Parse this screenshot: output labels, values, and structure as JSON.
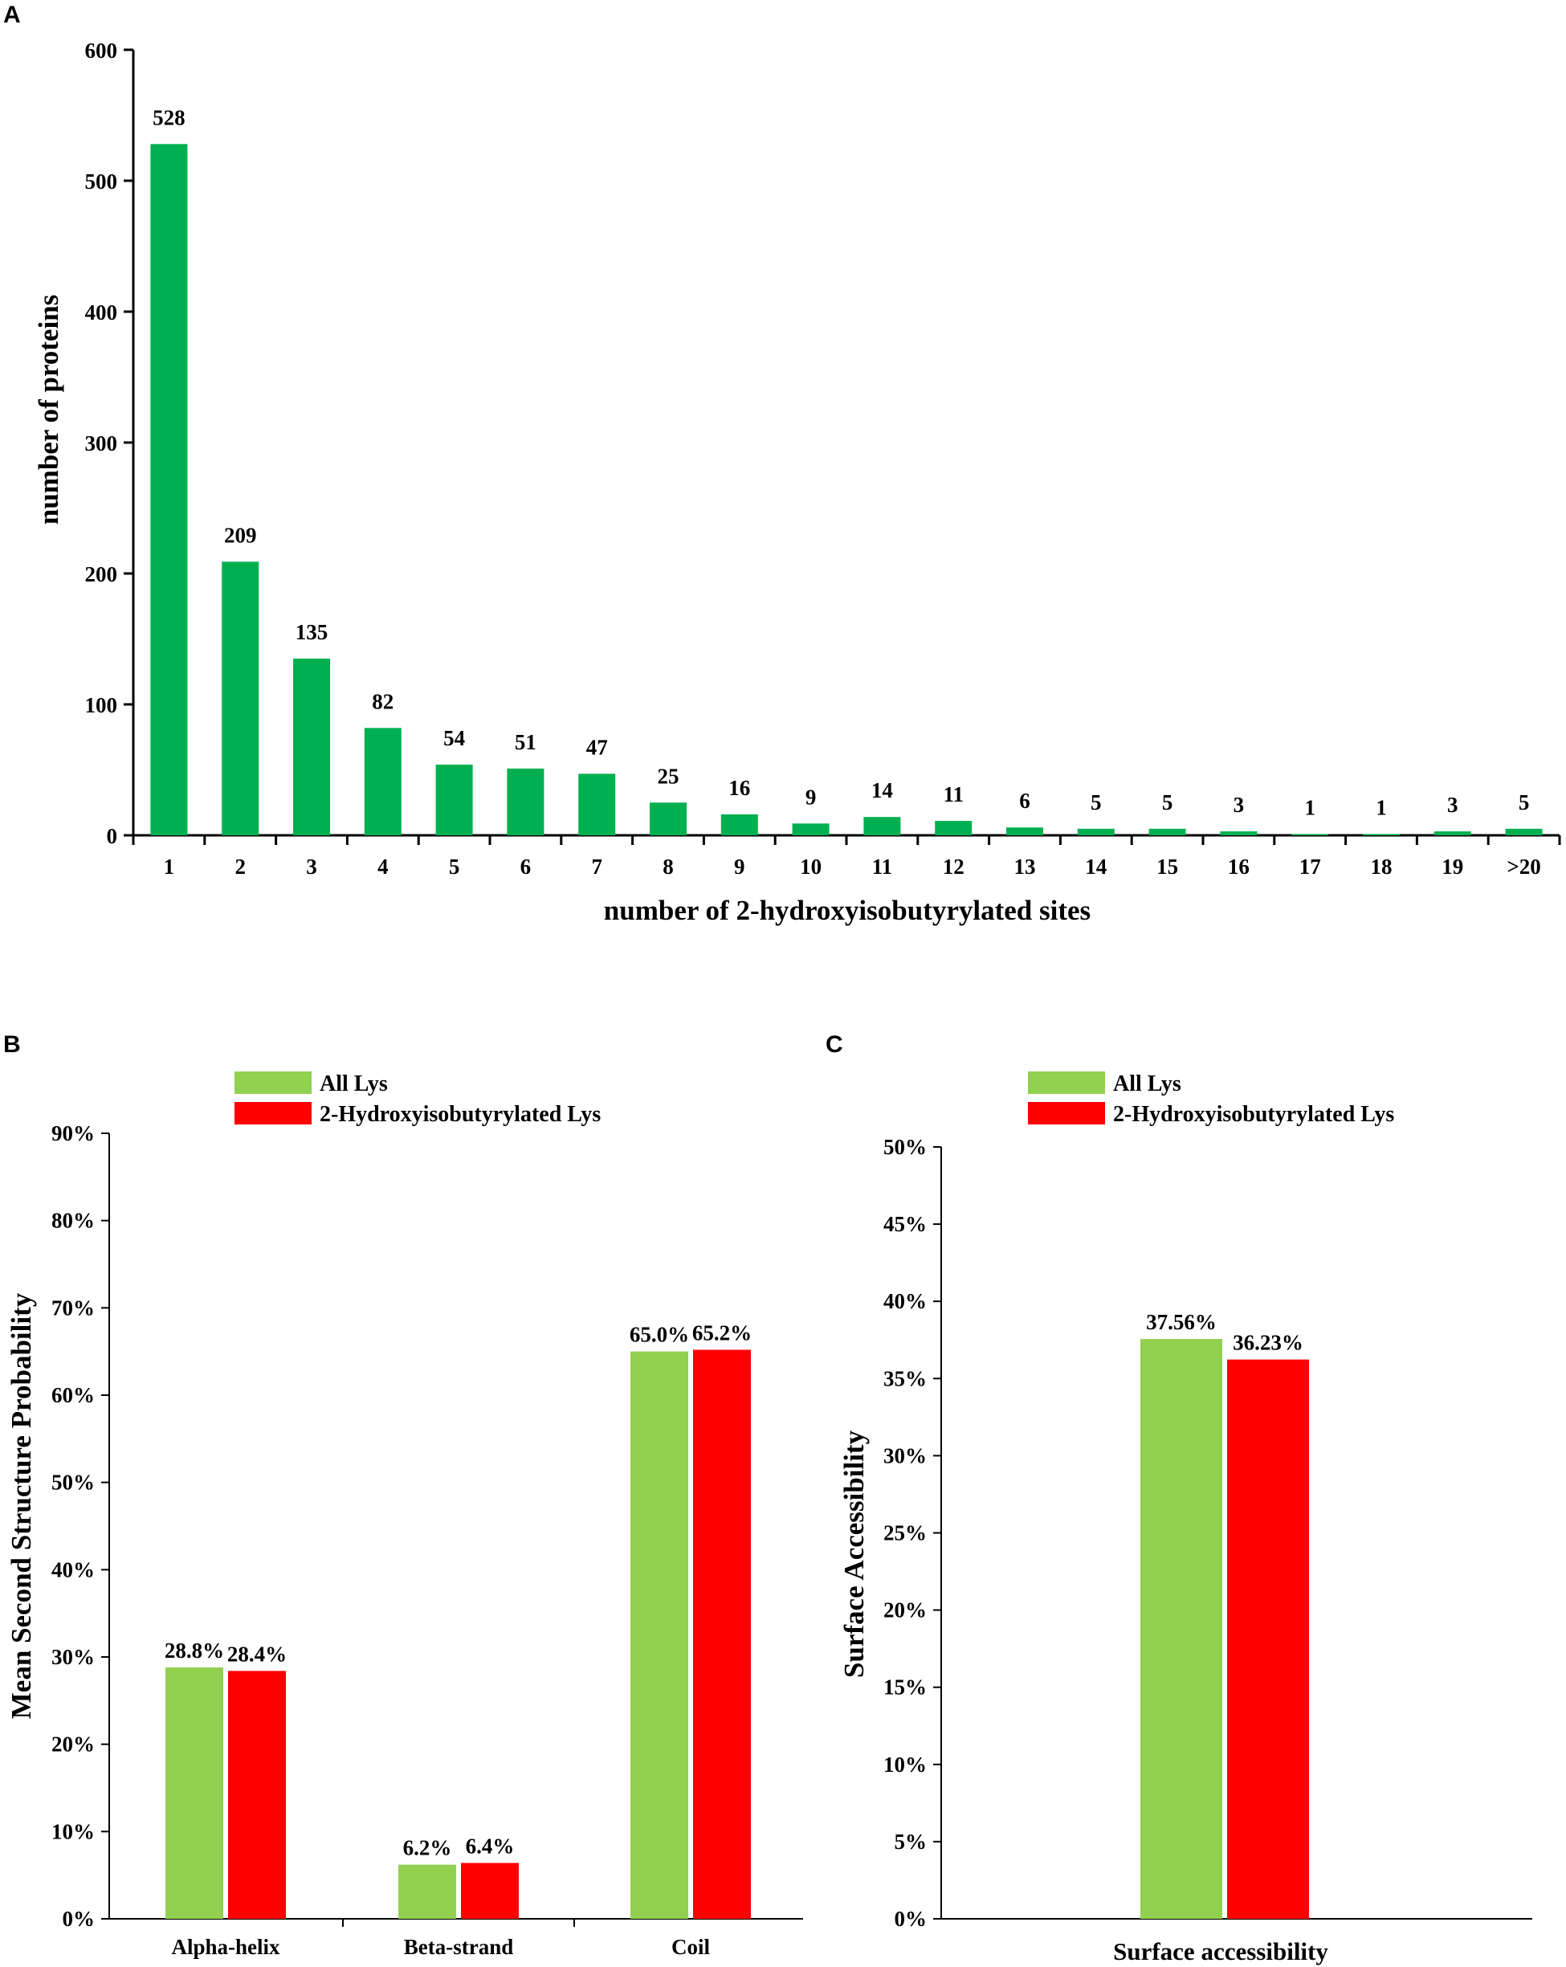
{
  "chart_data": [
    {
      "panel": "A",
      "type": "bar",
      "title": "",
      "xlabel": "number of 2-hydroxyisobutyrylated sites",
      "ylabel": "number of proteins",
      "categories": [
        "1",
        "2",
        "3",
        "4",
        "5",
        "6",
        "7",
        "8",
        "9",
        "10",
        "11",
        "12",
        "13",
        "14",
        "15",
        "16",
        "17",
        "18",
        "19",
        ">20"
      ],
      "values": [
        528,
        209,
        135,
        82,
        54,
        51,
        47,
        25,
        16,
        9,
        14,
        11,
        6,
        5,
        5,
        3,
        1,
        1,
        3,
        5
      ],
      "ylim": [
        0,
        600
      ],
      "yticks": [
        "0",
        "100",
        "200",
        "300",
        "400",
        "500",
        "600"
      ],
      "color": "#00b050",
      "grid": false
    },
    {
      "panel": "B",
      "type": "bar",
      "xlabel": "",
      "ylabel": "Mean Second Structure Probability",
      "categories": [
        "Alpha-helix",
        "Beta-strand",
        "Coil"
      ],
      "series": [
        {
          "name": "All Lys",
          "color": "#92d050",
          "values": [
            28.8,
            6.2,
            65.0
          ],
          "labels": [
            "28.8%",
            "6.2%",
            "65.0%"
          ]
        },
        {
          "name": "2-Hydroxyisobutyrylated  Lys",
          "color": "#ff0000",
          "values": [
            28.4,
            6.4,
            65.2
          ],
          "labels": [
            "28.4%",
            "6.4%",
            "65.2%"
          ]
        }
      ],
      "ylim": [
        0,
        90
      ],
      "yticks": [
        "0%",
        "10%",
        "20%",
        "30%",
        "40%",
        "50%",
        "60%",
        "70%",
        "80%",
        "90%"
      ],
      "legend": "top"
    },
    {
      "panel": "C",
      "type": "bar",
      "xlabel": "Surface accessibility",
      "ylabel": "Surface Accessibility",
      "categories": [
        ""
      ],
      "series": [
        {
          "name": "All Lys",
          "color": "#92d050",
          "values": [
            37.56
          ],
          "labels": [
            "37.56%"
          ]
        },
        {
          "name": "2-Hydroxyisobutyrylated  Lys",
          "color": "#ff0000",
          "values": [
            36.23
          ],
          "labels": [
            "36.23%"
          ]
        }
      ],
      "ylim": [
        0,
        50
      ],
      "yticks": [
        "0%",
        "5%",
        "10%",
        "15%",
        "20%",
        "25%",
        "30%",
        "35%",
        "40%",
        "45%",
        "50%"
      ],
      "legend": "top"
    }
  ]
}
